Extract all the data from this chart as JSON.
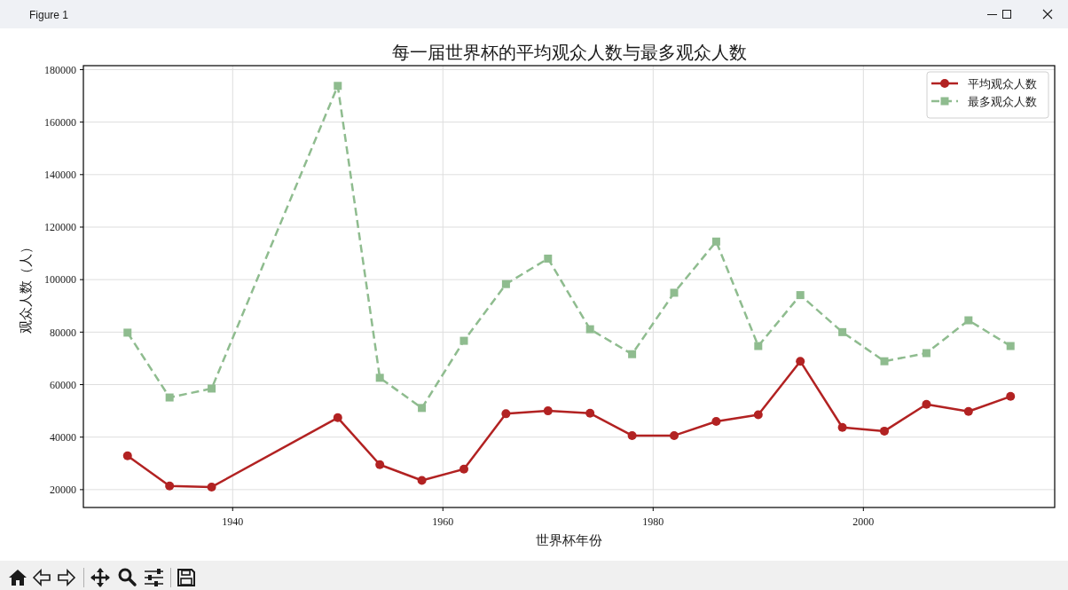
{
  "chart_data": {
    "type": "line",
    "title": "每一届世界杯的平均观众人数与最多观众人数",
    "xlabel": "世界杯年份",
    "ylabel": "观众人数（人）",
    "x": [
      1930,
      1934,
      1938,
      1950,
      1954,
      1958,
      1962,
      1966,
      1970,
      1974,
      1978,
      1982,
      1986,
      1990,
      1994,
      1998,
      2002,
      2006,
      2010,
      2014
    ],
    "series": [
      {
        "name": "平均观众人数",
        "color": "#b22222",
        "marker": "circle",
        "line_style": "solid",
        "values": [
          32900,
          21400,
          21000,
          47400,
          29500,
          23500,
          27800,
          48900,
          50000,
          49100,
          40600,
          40600,
          46000,
          48500,
          68900,
          43700,
          42300,
          52500,
          49800,
          55500
        ]
      },
      {
        "name": "最多观众人数",
        "color": "#8fbc8f",
        "marker": "square",
        "line_style": "dashed",
        "values": [
          79800,
          55100,
          58500,
          173800,
          62600,
          51100,
          76700,
          98300,
          108000,
          81100,
          71600,
          95000,
          114500,
          74700,
          94100,
          80000,
          68900,
          72000,
          84500,
          74700
        ]
      }
    ],
    "xlim": [
      1925.8,
      2018.2
    ],
    "ylim": [
      13200,
      181500
    ],
    "xticks": [
      1940,
      1960,
      1980,
      2000
    ],
    "yticks": [
      20000,
      40000,
      60000,
      80000,
      100000,
      120000,
      140000,
      160000,
      180000
    ],
    "grid": true,
    "legend": "top right",
    "annotations": [
      "Figure 1"
    ]
  }
}
